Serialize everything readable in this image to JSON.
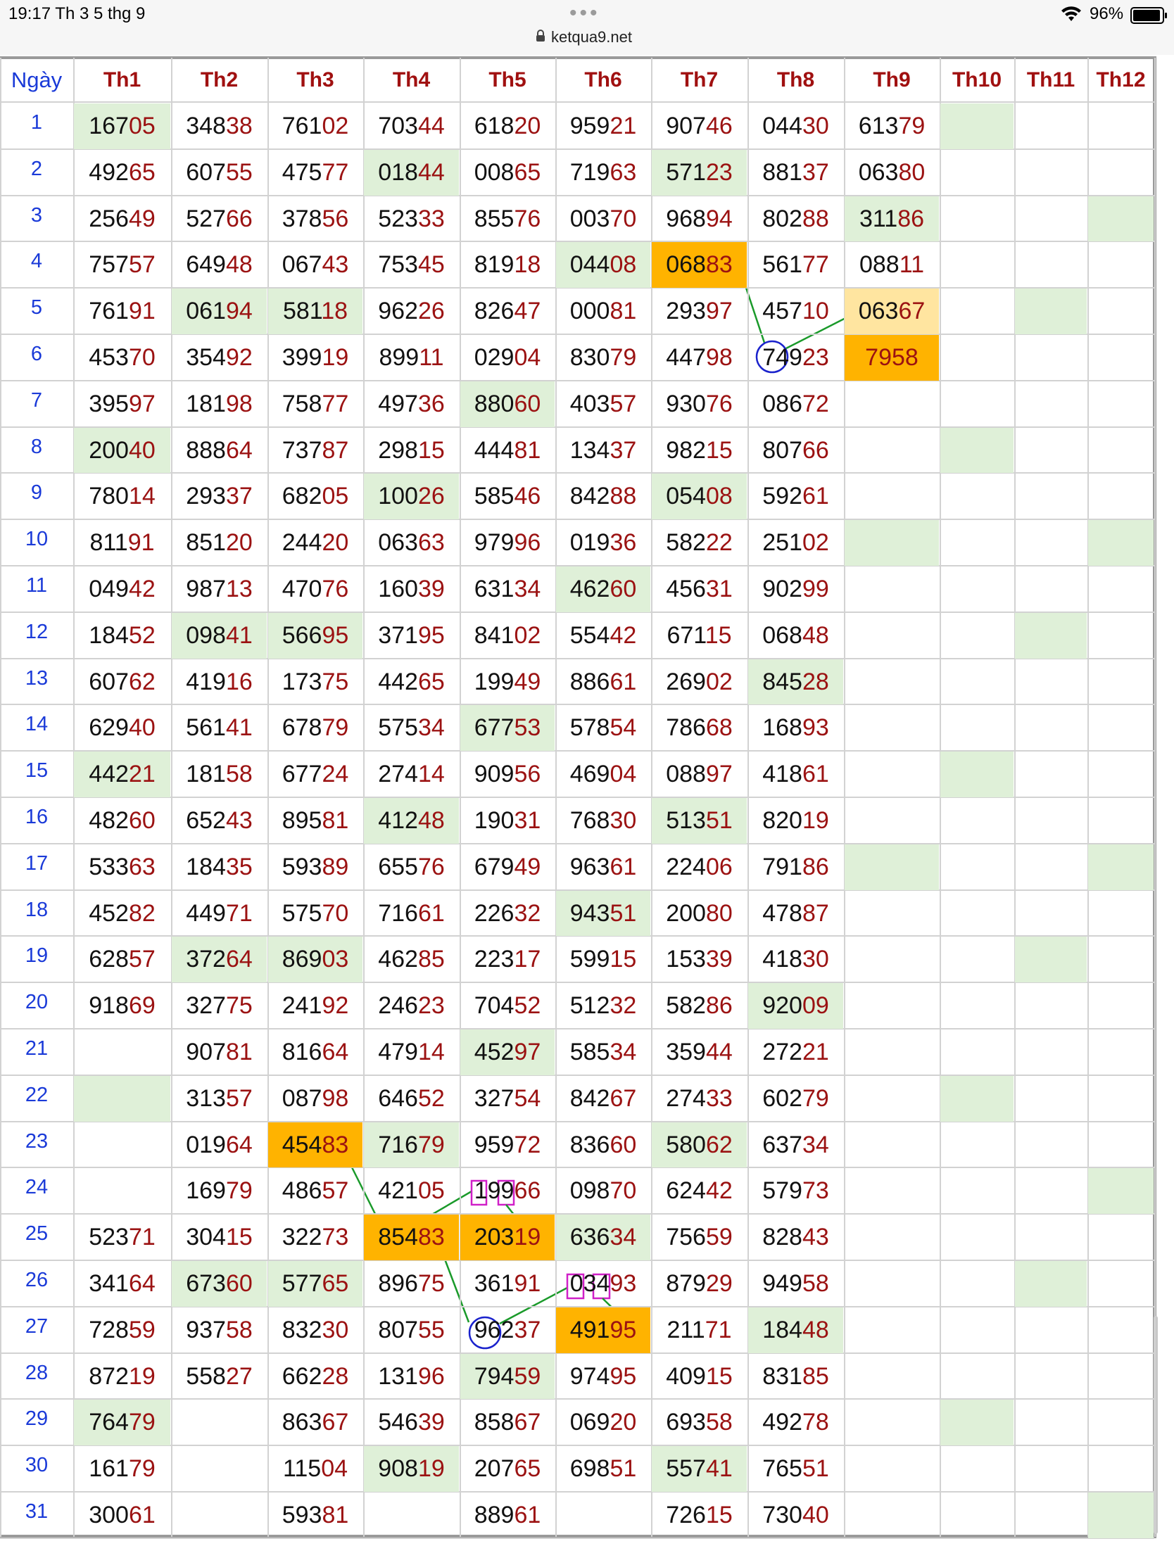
{
  "status_bar": {
    "time_date": "19:17   Th 3 5 thg 9",
    "dots": "•••",
    "battery_pct": "96%",
    "url": "ketqua9.net"
  },
  "table": {
    "headers": [
      "Ngày",
      "Th1",
      "Th2",
      "Th3",
      "Th4",
      "Th5",
      "Th6",
      "Th7",
      "Th8",
      "Th9",
      "Th10",
      "Th11",
      "Th12"
    ],
    "rows": [
      [
        "16705",
        "34838",
        "76102",
        "70344",
        "61820",
        "95921",
        "90746",
        "04430",
        "61379",
        "",
        "",
        ""
      ],
      [
        "49265",
        "60755",
        "47577",
        "01844",
        "00865",
        "71963",
        "57123",
        "88137",
        "06380",
        "",
        "",
        ""
      ],
      [
        "25649",
        "52766",
        "37856",
        "52333",
        "85576",
        "00370",
        "96894",
        "80288",
        "31186",
        "",
        "",
        ""
      ],
      [
        "75757",
        "64948",
        "06743",
        "75345",
        "81918",
        "04408",
        "06883",
        "56177",
        "08811",
        "",
        "",
        ""
      ],
      [
        "76191",
        "06194",
        "58118",
        "96226",
        "82647",
        "00081",
        "29397",
        "45710",
        "06367",
        "",
        "",
        ""
      ],
      [
        "45370",
        "35492",
        "39919",
        "89911",
        "02904",
        "83079",
        "44798",
        "74923",
        "7958",
        "",
        "",
        ""
      ],
      [
        "39597",
        "18198",
        "75877",
        "49736",
        "88060",
        "40357",
        "93076",
        "08672",
        "",
        "",
        "",
        ""
      ],
      [
        "20040",
        "88864",
        "73787",
        "29815",
        "44481",
        "13437",
        "98215",
        "80766",
        "",
        "",
        "",
        ""
      ],
      [
        "78014",
        "29337",
        "68205",
        "10026",
        "58546",
        "84288",
        "05408",
        "59261",
        "",
        "",
        "",
        ""
      ],
      [
        "81191",
        "85120",
        "24420",
        "06363",
        "97996",
        "01936",
        "58222",
        "25102",
        "",
        "",
        "",
        ""
      ],
      [
        "04942",
        "98713",
        "47076",
        "16039",
        "63134",
        "46260",
        "45631",
        "90299",
        "",
        "",
        "",
        ""
      ],
      [
        "18452",
        "09841",
        "56695",
        "37195",
        "84102",
        "55442",
        "67115",
        "06848",
        "",
        "",
        "",
        ""
      ],
      [
        "60762",
        "41916",
        "17375",
        "44265",
        "19949",
        "88661",
        "26902",
        "84528",
        "",
        "",
        "",
        ""
      ],
      [
        "62940",
        "56141",
        "67879",
        "57534",
        "67753",
        "57854",
        "78668",
        "16893",
        "",
        "",
        "",
        ""
      ],
      [
        "44221",
        "18158",
        "67724",
        "27414",
        "90956",
        "46904",
        "08897",
        "41861",
        "",
        "",
        "",
        ""
      ],
      [
        "48260",
        "65243",
        "89581",
        "41248",
        "19031",
        "76830",
        "51351",
        "82019",
        "",
        "",
        "",
        ""
      ],
      [
        "53363",
        "18435",
        "59389",
        "65576",
        "67949",
        "96361",
        "22406",
        "79186",
        "",
        "",
        "",
        ""
      ],
      [
        "45282",
        "44971",
        "57570",
        "71661",
        "22632",
        "94351",
        "20080",
        "47887",
        "",
        "",
        "",
        ""
      ],
      [
        "62857",
        "37264",
        "86903",
        "46285",
        "22317",
        "59915",
        "15339",
        "41830",
        "",
        "",
        "",
        ""
      ],
      [
        "91869",
        "32775",
        "24192",
        "24623",
        "70452",
        "51232",
        "58286",
        "92009",
        "",
        "",
        "",
        ""
      ],
      [
        "",
        "90781",
        "81664",
        "47914",
        "45297",
        "58534",
        "35944",
        "27221",
        "",
        "",
        "",
        ""
      ],
      [
        "",
        "31357",
        "08798",
        "64652",
        "32754",
        "84267",
        "27433",
        "60279",
        "",
        "",
        "",
        ""
      ],
      [
        "",
        "01964",
        "45483",
        "71679",
        "95972",
        "83660",
        "58062",
        "63734",
        "",
        "",
        "",
        ""
      ],
      [
        "",
        "16979",
        "48657",
        "42105",
        "19966",
        "09870",
        "62442",
        "57973",
        "",
        "",
        "",
        ""
      ],
      [
        "52371",
        "30415",
        "32273",
        "85483",
        "20319",
        "63634",
        "75659",
        "82843",
        "",
        "",
        "",
        ""
      ],
      [
        "34164",
        "67360",
        "57765",
        "89675",
        "36191",
        "03493",
        "87929",
        "94958",
        "",
        "",
        "",
        ""
      ],
      [
        "72859",
        "93758",
        "83230",
        "80755",
        "96237",
        "49195",
        "21171",
        "18448",
        "",
        "",
        "",
        ""
      ],
      [
        "87219",
        "55827",
        "66228",
        "13196",
        "79459",
        "97495",
        "40915",
        "83185",
        "",
        "",
        "",
        ""
      ],
      [
        "76479",
        "",
        "86367",
        "54639",
        "85867",
        "06920",
        "69358",
        "49278",
        "",
        "",
        "",
        ""
      ],
      [
        "16179",
        "",
        "11504",
        "90819",
        "20765",
        "69851",
        "55741",
        "76551",
        "",
        "",
        "",
        ""
      ],
      [
        "30061",
        "",
        "59381",
        "",
        "88961",
        "",
        "72615",
        "73040",
        "",
        "",
        "",
        ""
      ]
    ]
  },
  "colors": {
    "header_text": "#a01010",
    "day_text": "#1a3ad8",
    "digit_main": "#111111",
    "digit_tail": "#9b1212",
    "highlight_green": "#dff0d8",
    "highlight_orange": "#ffb300",
    "highlight_light_orange": "#ffe5a0",
    "marker_green": "#1a9a2a",
    "marker_magenta": "#d020c8",
    "marker_blue": "#1a22cc"
  },
  "icons": [
    "wifi-icon",
    "battery-icon",
    "lock-icon",
    "more-dots-icon"
  ]
}
